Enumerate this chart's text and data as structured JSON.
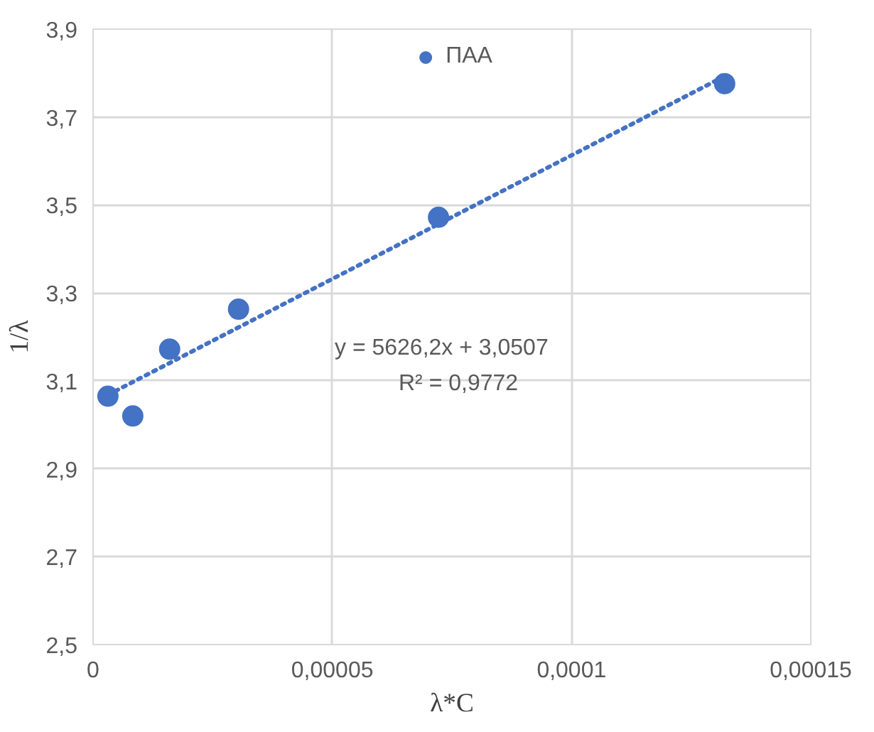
{
  "chart_data": {
    "type": "scatter",
    "xlabel": "λ*C",
    "ylabel": "1/λ",
    "series": [
      {
        "name": "ПАА",
        "color": "#4472c4",
        "marker": "circle",
        "x": [
          3.1e-06,
          8.3e-06,
          1.6e-05,
          3.04e-05,
          7.22e-05,
          0.000132
        ],
        "values": [
          3.065,
          3.02,
          3.172,
          3.263,
          3.472,
          3.776
        ]
      },
      {
        "type": "line",
        "color": "#4472c4",
        "line_style": "dotted",
        "x": [
          3.1e-06,
          0.000132
        ],
        "values": [
          3.068,
          3.793
        ]
      }
    ],
    "annotations": [
      "y = 5626,2x + 3,0507",
      "R² = 0,9772"
    ],
    "xlim": [
      0,
      0.00015
    ],
    "ylim": [
      2.5,
      3.9
    ],
    "xticks": [
      0,
      {
        "value": 5e-05,
        "label": "0,00005"
      },
      {
        "value": 0.0001,
        "label": "0,0001"
      },
      {
        "value": 0.00015,
        "label": "0,00015"
      }
    ],
    "yticks": [
      {
        "value": 2.5,
        "label": "2,5"
      },
      {
        "value": 2.7,
        "label": "2,7"
      },
      {
        "value": 2.9,
        "label": "2,9"
      },
      {
        "value": 3.1,
        "label": "3,1"
      },
      {
        "value": 3.3,
        "label": "3,3"
      },
      {
        "value": 3.5,
        "label": "3,5"
      },
      {
        "value": 3.7,
        "label": "3,7"
      },
      {
        "value": 3.9,
        "label": "3,9"
      }
    ],
    "grid": true,
    "legend": "top"
  }
}
